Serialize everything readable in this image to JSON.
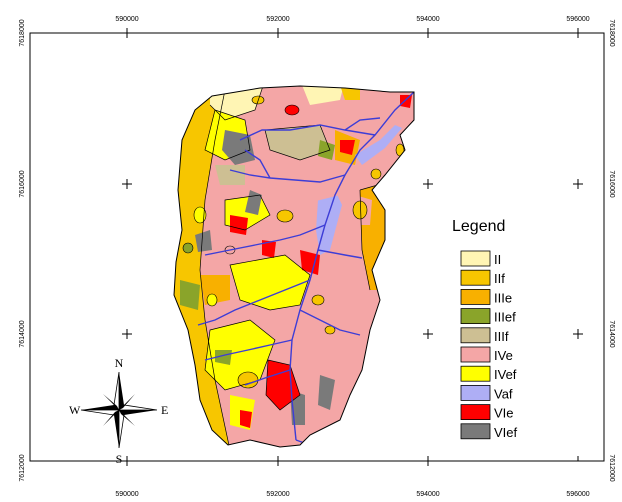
{
  "map": {
    "coords_x": [
      "590000",
      "592000",
      "594000",
      "596000"
    ],
    "coords_y": [
      "7618000",
      "7616000",
      "7614000",
      "7612000"
    ]
  },
  "legend": {
    "title": "Legend",
    "items": [
      {
        "label": "II",
        "color": "#fff5b4"
      },
      {
        "label": "IIf",
        "color": "#f7c600"
      },
      {
        "label": "IIIe",
        "color": "#f8b000"
      },
      {
        "label": "IIIef",
        "color": "#8aa42a"
      },
      {
        "label": "IIIf",
        "color": "#cdbf93"
      },
      {
        "label": "IVe",
        "color": "#f4a6a6"
      },
      {
        "label": "IVef",
        "color": "#ffff00"
      },
      {
        "label": "Vaf",
        "color": "#aeaef5"
      },
      {
        "label": "VIe",
        "color": "#ff0000"
      },
      {
        "label": "VIef",
        "color": "#7a7a7a"
      }
    ]
  },
  "compass": {
    "n": "N",
    "s": "S",
    "e": "E",
    "w": "W"
  },
  "colors": {
    "stream": "#3d3dd6",
    "border": "#000000"
  }
}
